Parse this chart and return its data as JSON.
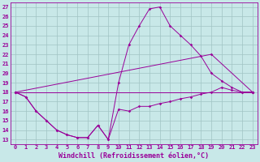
{
  "xlabel": "Windchill (Refroidissement éolien,°C)",
  "xlim": [
    -0.5,
    23.5
  ],
  "ylim": [
    12.5,
    27.5
  ],
  "xticks": [
    0,
    1,
    2,
    3,
    4,
    5,
    6,
    7,
    8,
    9,
    10,
    11,
    12,
    13,
    14,
    15,
    16,
    17,
    18,
    19,
    20,
    21,
    22,
    23
  ],
  "yticks": [
    13,
    14,
    15,
    16,
    17,
    18,
    19,
    20,
    21,
    22,
    23,
    24,
    25,
    26,
    27
  ],
  "bg_color": "#c8e8e8",
  "grid_color": "#a0c4c4",
  "line_color": "#990099",
  "lines": [
    {
      "x": [
        0,
        1,
        2,
        3,
        4,
        5,
        6,
        7,
        8,
        9,
        10,
        11,
        12,
        13,
        14,
        15,
        16,
        17,
        18,
        19,
        20,
        21,
        22,
        23
      ],
      "y": [
        18.0,
        17.5,
        16.0,
        15.0,
        14.0,
        13.5,
        13.2,
        13.2,
        14.5,
        13.0,
        16.2,
        16.0,
        16.5,
        16.5,
        16.8,
        17.0,
        17.3,
        17.5,
        17.8,
        18.0,
        18.5,
        18.2,
        18.0,
        18.0
      ]
    },
    {
      "x": [
        0,
        1,
        2,
        3,
        4,
        5,
        6,
        7,
        8,
        9,
        10,
        11,
        12,
        13,
        14,
        15,
        16,
        17,
        18,
        19,
        20,
        21,
        22,
        23
      ],
      "y": [
        18.0,
        17.5,
        16.0,
        15.0,
        14.0,
        13.5,
        13.2,
        13.2,
        14.5,
        13.0,
        19.0,
        23.0,
        25.0,
        26.8,
        27.0,
        25.0,
        24.0,
        23.0,
        21.8,
        20.0,
        19.2,
        18.5,
        18.0,
        18.0
      ]
    },
    {
      "x": [
        0,
        23
      ],
      "y": [
        18.0,
        18.0
      ]
    },
    {
      "x": [
        0,
        19,
        23
      ],
      "y": [
        18.0,
        22.0,
        18.0
      ]
    }
  ],
  "tick_fontsize": 5.0,
  "label_fontsize": 6.0
}
